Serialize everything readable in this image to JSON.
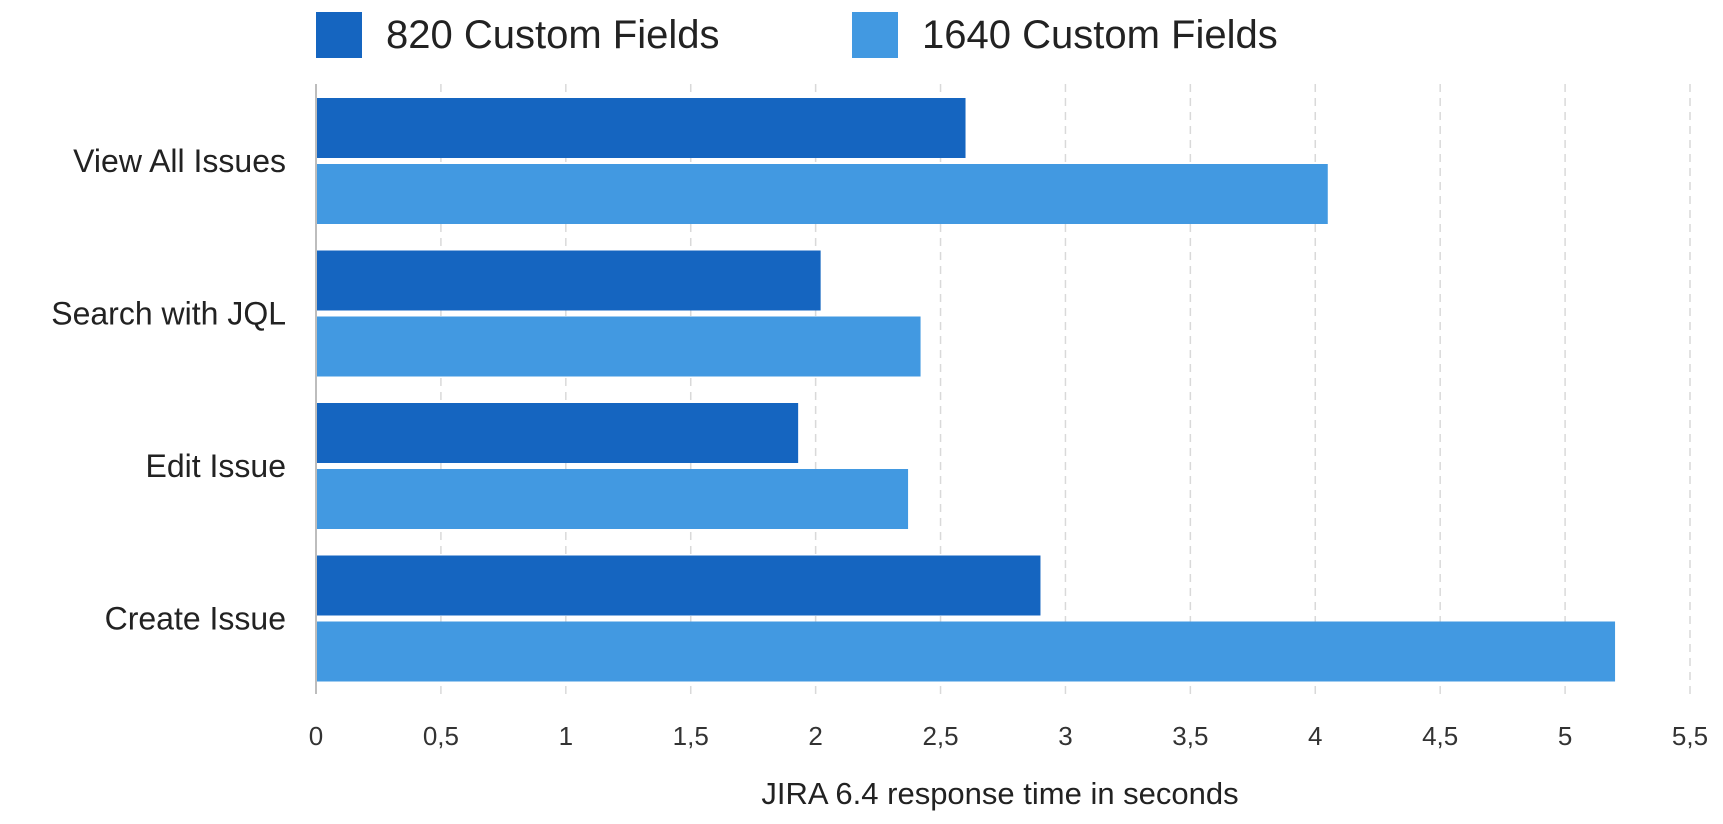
{
  "chart_data": {
    "type": "bar",
    "orientation": "horizontal",
    "categories": [
      "View All Issues",
      "Search with JQL",
      "Edit Issue",
      "Create Issue"
    ],
    "series": [
      {
        "name": "820 Custom Fields",
        "color": "#1565C0",
        "values": [
          2.6,
          2.02,
          1.93,
          2.9
        ]
      },
      {
        "name": "1640 Custom Fields",
        "color": "#4299E1",
        "values": [
          4.05,
          2.42,
          2.37,
          5.2
        ]
      }
    ],
    "xlabel": "JIRA 6.4 response time in seconds",
    "xlim": [
      0,
      5.5
    ],
    "xticks": [
      "0",
      "0,5",
      "1",
      "1,5",
      "2",
      "2,5",
      "3",
      "3,5",
      "4",
      "4,5",
      "5",
      "5,5"
    ],
    "grid": true,
    "grid_style": "dashed vertical",
    "legend_position": "top"
  }
}
